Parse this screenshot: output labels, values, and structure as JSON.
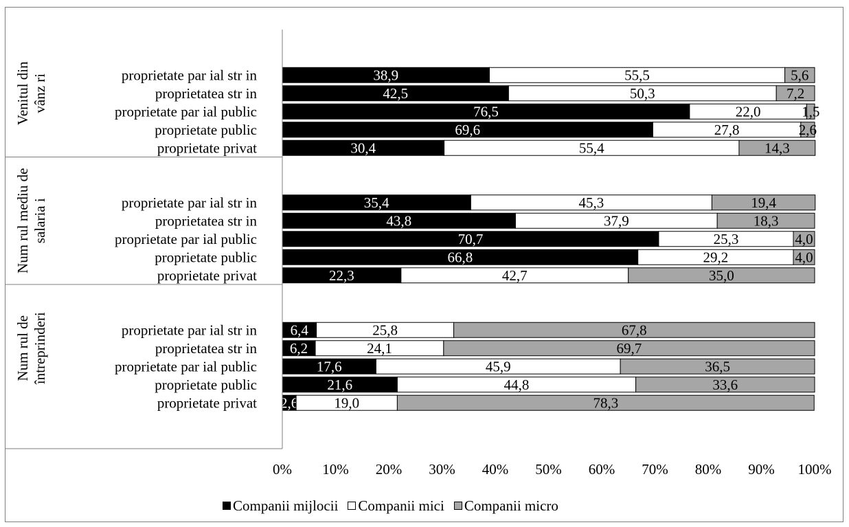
{
  "chart_data": {
    "type": "bar",
    "orientation": "horizontal",
    "stacked": "percent",
    "xlim": [
      0,
      100
    ],
    "x_ticks": [
      "0%",
      "10%",
      "20%",
      "30%",
      "40%",
      "50%",
      "60%",
      "70%",
      "80%",
      "90%",
      "100%"
    ],
    "grid": false,
    "legend_position": "bottom",
    "series": [
      {
        "name": "Companii mijlocii",
        "color": "#000000",
        "label_color": "#ffffff"
      },
      {
        "name": "Companii mici",
        "color": "#ffffff",
        "label_color": "#000000"
      },
      {
        "name": "Companii micro",
        "color": "#a6a6a6",
        "label_color": "#000000"
      }
    ],
    "groups": [
      {
        "label_lines": [
          "Venitul din",
          "vânz ri"
        ],
        "rows": [
          {
            "label": "proprietate par ial str  in",
            "values": [
              38.9,
              55.5,
              5.6
            ],
            "labels": [
              "38,9",
              "55,5",
              "5,6"
            ]
          },
          {
            "label": "proprietatea str  in",
            "values": [
              42.5,
              50.3,
              7.2
            ],
            "labels": [
              "42,5",
              "50,3",
              "7,2"
            ]
          },
          {
            "label": "proprietate par ial public",
            "values": [
              76.5,
              22.0,
              1.5
            ],
            "labels": [
              "76,5",
              "22,0",
              "1,5"
            ]
          },
          {
            "label": "proprietate public",
            "values": [
              69.6,
              27.8,
              2.6
            ],
            "labels": [
              "69,6",
              "27,8",
              "2,6"
            ]
          },
          {
            "label": "proprietate privat",
            "values": [
              30.4,
              55.4,
              14.3
            ],
            "labels": [
              "30,4",
              "55,4",
              "14,3"
            ]
          }
        ]
      },
      {
        "label_lines": [
          "Num rul mediu de",
          "salaria i"
        ],
        "rows": [
          {
            "label": "proprietate par ial str  in",
            "values": [
              35.4,
              45.3,
              19.4
            ],
            "labels": [
              "35,4",
              "45,3",
              "19,4"
            ]
          },
          {
            "label": "proprietatea str  in",
            "values": [
              43.8,
              37.9,
              18.3
            ],
            "labels": [
              "43,8",
              "37,9",
              "18,3"
            ]
          },
          {
            "label": "proprietate par ial public",
            "values": [
              70.7,
              25.3,
              4.0
            ],
            "labels": [
              "70,7",
              "25,3",
              "4,0"
            ]
          },
          {
            "label": "proprietate public",
            "values": [
              66.8,
              29.2,
              4.0
            ],
            "labels": [
              "66,8",
              "29,2",
              "4,0"
            ]
          },
          {
            "label": "proprietate privat",
            "values": [
              22.3,
              42.7,
              35.0
            ],
            "labels": [
              "22,3",
              "42,7",
              "35,0"
            ]
          }
        ]
      },
      {
        "label_lines": [
          "Num rul de",
          "întreprinderi"
        ],
        "rows": [
          {
            "label": "proprietate par ial str  in",
            "values": [
              6.4,
              25.8,
              67.8
            ],
            "labels": [
              "6,4",
              "25,8",
              "67,8"
            ]
          },
          {
            "label": "proprietatea str  in",
            "values": [
              6.2,
              24.1,
              69.7
            ],
            "labels": [
              "6,2",
              "24,1",
              "69,7"
            ]
          },
          {
            "label": "proprietate par ial public",
            "values": [
              17.6,
              45.9,
              36.5
            ],
            "labels": [
              "17,6",
              "45,9",
              "36,5"
            ]
          },
          {
            "label": "proprietate public",
            "values": [
              21.6,
              44.8,
              33.6
            ],
            "labels": [
              "21,6",
              "44,8",
              "33,6"
            ]
          },
          {
            "label": "proprietate privat",
            "values": [
              2.6,
              19.0,
              78.3
            ],
            "labels": [
              "2,6",
              "19,0",
              "78,3"
            ]
          }
        ]
      }
    ]
  }
}
